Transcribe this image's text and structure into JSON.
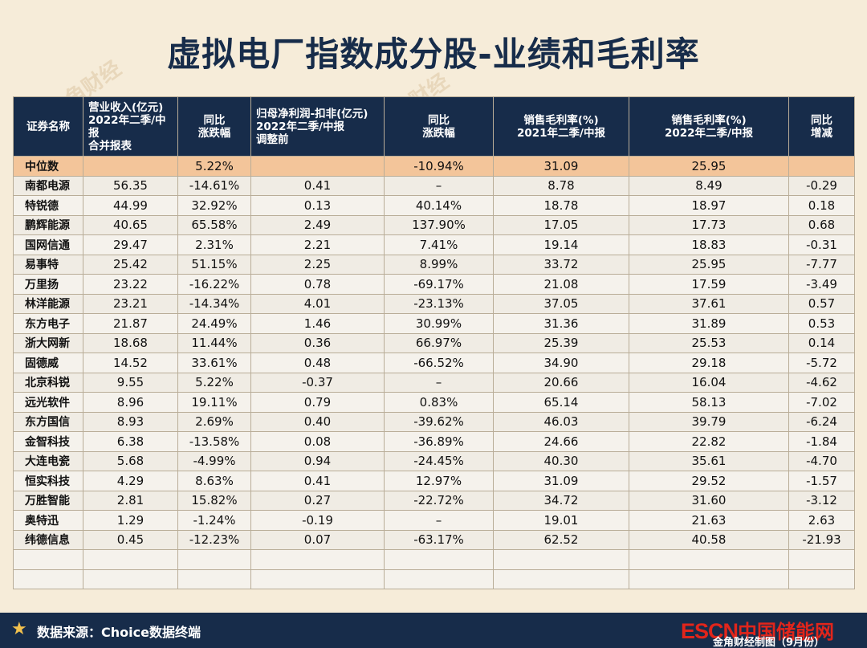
{
  "title": "虚拟电厂指数成分股-业绩和毛利率",
  "watermark_text": "金角财经",
  "headers": [
    [
      "证券名称"
    ],
    [
      "营业收入(亿元)",
      "2022年二季/中报",
      "合并报表"
    ],
    [
      "同比",
      "涨跌幅"
    ],
    [
      "归母净利润-扣非(亿元)",
      "2022年二季/中报",
      "调整前"
    ],
    [
      "同比",
      "涨跌幅"
    ],
    [
      "销售毛利率(%)",
      "2021年二季/中报"
    ],
    [
      "销售毛利率(%)",
      "2022年二季/中报"
    ],
    [
      "同比",
      "增减"
    ]
  ],
  "median": [
    "中位数",
    "",
    "5.22%",
    "",
    "-10.94%",
    "31.09",
    "25.95",
    ""
  ],
  "rows": [
    [
      "南都电源",
      "56.35",
      "-14.61%",
      "0.41",
      "–",
      "8.78",
      "8.49",
      "-0.29"
    ],
    [
      "特锐德",
      "44.99",
      "32.92%",
      "0.13",
      "40.14%",
      "18.78",
      "18.97",
      "0.18"
    ],
    [
      "鹏辉能源",
      "40.65",
      "65.58%",
      "2.49",
      "137.90%",
      "17.05",
      "17.73",
      "0.68"
    ],
    [
      "国网信通",
      "29.47",
      "2.31%",
      "2.21",
      "7.41%",
      "19.14",
      "18.83",
      "-0.31"
    ],
    [
      "易事特",
      "25.42",
      "51.15%",
      "2.25",
      "8.99%",
      "33.72",
      "25.95",
      "-7.77"
    ],
    [
      "万里扬",
      "23.22",
      "-16.22%",
      "0.78",
      "-69.17%",
      "21.08",
      "17.59",
      "-3.49"
    ],
    [
      "林洋能源",
      "23.21",
      "-14.34%",
      "4.01",
      "-23.13%",
      "37.05",
      "37.61",
      "0.57"
    ],
    [
      "东方电子",
      "21.87",
      "24.49%",
      "1.46",
      "30.99%",
      "31.36",
      "31.89",
      "0.53"
    ],
    [
      "浙大网新",
      "18.68",
      "11.44%",
      "0.36",
      "66.97%",
      "25.39",
      "25.53",
      "0.14"
    ],
    [
      "固德威",
      "14.52",
      "33.61%",
      "0.48",
      "-66.52%",
      "34.90",
      "29.18",
      "-5.72"
    ],
    [
      "北京科锐",
      "9.55",
      "5.22%",
      "-0.37",
      "–",
      "20.66",
      "16.04",
      "-4.62"
    ],
    [
      "远光软件",
      "8.96",
      "19.11%",
      "0.79",
      "0.83%",
      "65.14",
      "58.13",
      "-7.02"
    ],
    [
      "东方国信",
      "8.93",
      "2.69%",
      "0.40",
      "-39.62%",
      "46.03",
      "39.79",
      "-6.24"
    ],
    [
      "金智科技",
      "6.38",
      "-13.58%",
      "0.08",
      "-36.89%",
      "24.66",
      "22.82",
      "-1.84"
    ],
    [
      "大连电瓷",
      "5.68",
      "-4.99%",
      "0.94",
      "-24.45%",
      "40.30",
      "35.61",
      "-4.70"
    ],
    [
      "恒实科技",
      "4.29",
      "8.63%",
      "0.41",
      "12.97%",
      "31.09",
      "29.52",
      "-1.57"
    ],
    [
      "万胜智能",
      "2.81",
      "15.82%",
      "0.27",
      "-22.72%",
      "34.72",
      "31.60",
      "-3.12"
    ],
    [
      "奥特迅",
      "1.29",
      "-1.24%",
      "-0.19",
      "–",
      "19.01",
      "21.63",
      "2.63"
    ],
    [
      "纬德信息",
      "0.45",
      "-12.23%",
      "0.07",
      "-63.17%",
      "62.52",
      "40.58",
      "-21.93"
    ]
  ],
  "footer": {
    "source": "数据来源：Choice数据终端",
    "logo_escn": "ESCN",
    "logo_cn": "中国储能网",
    "credit": "金角财经制图（9月份）"
  },
  "colors": {
    "header_bg": "#172c4a",
    "median_bg": "#f3c59a",
    "page_bg": "#f6ecd9",
    "logo_red": "#e1251b"
  }
}
